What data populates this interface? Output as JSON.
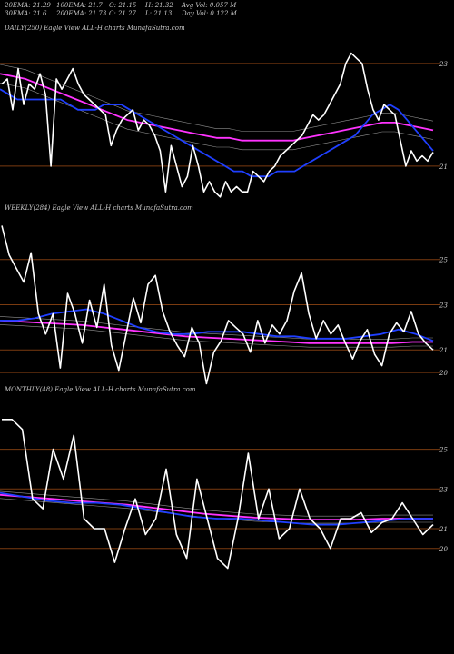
{
  "header": {
    "ema20": "20EMA: 21.29",
    "ema100": "100EMA: 21.7",
    "open": "O: 21.15",
    "high": "H: 21.32",
    "avg_vol": "Avg Vol: 0.057  M",
    "ema30": "30EMA: 21.6",
    "ema200": "200EMA: 21.73",
    "close": "C: 21.27",
    "low": "L: 21.13",
    "day_vol": "Day Vol: 0.122  M"
  },
  "colors": {
    "background": "#000000",
    "price": "#ffffff",
    "ema_fast": "#1f3fff",
    "ema_slow": "#ff33ff",
    "ema_mid": "#cfcfcf",
    "ema_brown": "#b06a2a",
    "ref_line": "#7a3b10"
  },
  "chart_data": [
    {
      "type": "line",
      "title": "DAILY(250) Eagle   View  ALL-H charts MunafaSutra.com",
      "tick_labels": [
        "23",
        "21"
      ],
      "ref_levels": [
        23,
        21
      ],
      "ylim": [
        19.6,
        23.6
      ],
      "series": [
        {
          "name": "Price",
          "color": "#ffffff",
          "values": [
            22.6,
            22.7,
            22.1,
            22.9,
            22.2,
            22.6,
            22.5,
            22.8,
            22.4,
            21.0,
            22.7,
            22.5,
            22.7,
            22.9,
            22.6,
            22.4,
            22.3,
            22.2,
            22.1,
            22.0,
            21.4,
            21.7,
            21.9,
            22.0,
            22.1,
            21.7,
            21.9,
            21.8,
            21.6,
            21.3,
            20.5,
            21.4,
            21.0,
            20.6,
            20.8,
            21.4,
            21.0,
            20.5,
            20.7,
            20.5,
            20.4,
            20.7,
            20.5,
            20.6,
            20.5,
            20.5,
            20.9,
            20.8,
            20.7,
            20.9,
            21.0,
            21.2,
            21.3,
            21.4,
            21.5,
            21.6,
            21.8,
            22.0,
            21.9,
            22.0,
            22.2,
            22.4,
            22.6,
            23.0,
            23.2,
            23.1,
            23.0,
            22.5,
            22.1,
            21.9,
            22.2,
            22.1,
            22.0,
            21.5,
            21.0,
            21.3,
            21.1,
            21.2,
            21.1,
            21.27
          ]
        },
        {
          "name": "EMA fast",
          "color": "#1f3fff",
          "values": [
            22.5,
            22.4,
            22.3,
            22.3,
            22.3,
            22.3,
            22.3,
            22.3,
            22.2,
            22.1,
            22.1,
            22.1,
            22.2,
            22.2,
            22.2,
            22.1,
            22.0,
            21.9,
            21.8,
            21.7,
            21.6,
            21.5,
            21.4,
            21.3,
            21.2,
            21.1,
            21.0,
            20.9,
            20.9,
            20.8,
            20.8,
            20.8,
            20.9,
            20.9,
            20.9,
            21.0,
            21.1,
            21.2,
            21.3,
            21.4,
            21.5,
            21.6,
            21.8,
            22.0,
            22.1,
            22.2,
            22.1,
            21.9,
            21.7,
            21.5,
            21.3
          ]
        },
        {
          "name": "EMA slow",
          "color": "#ff33ff",
          "values": [
            22.8,
            22.75,
            22.7,
            22.6,
            22.5,
            22.4,
            22.3,
            22.2,
            22.1,
            22.0,
            21.9,
            21.85,
            21.8,
            21.75,
            21.7,
            21.65,
            21.6,
            21.55,
            21.55,
            21.5,
            21.5,
            21.5,
            21.5,
            21.5,
            21.55,
            21.6,
            21.65,
            21.7,
            21.75,
            21.8,
            21.85,
            21.85,
            21.8,
            21.75,
            21.7
          ]
        }
      ]
    },
    {
      "type": "line",
      "title": "WEEKLY(284) Eagle   View  ALL-H charts MunafaSutra.com",
      "tick_labels": [
        "25",
        "23",
        "21",
        "20"
      ],
      "ref_levels": [
        25,
        23,
        21,
        20
      ],
      "ylim": [
        19.2,
        27
      ],
      "series": [
        {
          "name": "Price",
          "color": "#ffffff",
          "values": [
            26.5,
            25.2,
            24.6,
            24.0,
            25.3,
            22.6,
            21.7,
            22.6,
            20.2,
            23.5,
            22.6,
            21.3,
            23.2,
            22.0,
            23.9,
            21.2,
            20.1,
            21.7,
            23.3,
            22.2,
            23.9,
            24.3,
            22.7,
            21.8,
            21.2,
            20.7,
            22.0,
            21.3,
            19.5,
            20.9,
            21.4,
            22.3,
            22.0,
            21.7,
            20.9,
            22.3,
            21.3,
            22.1,
            21.7,
            22.3,
            23.6,
            24.4,
            22.6,
            21.5,
            22.3,
            21.7,
            22.1,
            21.3,
            20.6,
            21.4,
            21.9,
            20.8,
            20.3,
            21.7,
            22.2,
            21.8,
            22.7,
            21.7,
            21.3,
            21.0
          ]
        },
        {
          "name": "EMA fast",
          "color": "#1f3fff",
          "values": [
            22.3,
            22.3,
            22.4,
            22.6,
            22.7,
            22.8,
            22.6,
            22.3,
            22.0,
            21.8,
            21.7,
            21.7,
            21.8,
            21.8,
            21.8,
            21.7,
            21.6,
            21.6,
            21.5,
            21.5,
            21.5,
            21.6,
            21.7,
            21.9,
            21.7,
            21.4
          ]
        },
        {
          "name": "EMA slow",
          "color": "#ff33ff",
          "values": [
            22.3,
            22.25,
            22.2,
            22.15,
            22.1,
            22.0,
            21.9,
            21.8,
            21.7,
            21.6,
            21.55,
            21.5,
            21.45,
            21.4,
            21.35,
            21.3,
            21.3,
            21.3,
            21.3,
            21.3,
            21.35,
            21.35
          ]
        }
      ]
    },
    {
      "type": "line",
      "title": "MONTHLY(48) Eagle   View  ALL-H charts MunafaSutra.com",
      "tick_labels": [
        "25",
        "23",
        "21",
        "20"
      ],
      "ref_levels": [
        25,
        23,
        21,
        20
      ],
      "ylim": [
        18.8,
        27.5
      ],
      "series": [
        {
          "name": "Price",
          "color": "#ffffff",
          "values": [
            26.5,
            26.5,
            26.0,
            22.5,
            22.0,
            25.0,
            23.5,
            25.7,
            21.5,
            21.0,
            21.0,
            19.3,
            21.0,
            22.5,
            20.7,
            21.5,
            24.0,
            20.7,
            19.5,
            23.5,
            21.5,
            19.5,
            19.0,
            21.5,
            24.8,
            21.5,
            23.0,
            20.5,
            21.0,
            23.0,
            21.5,
            21.0,
            20.0,
            21.5,
            21.5,
            21.8,
            20.8,
            21.3,
            21.5,
            22.3,
            21.5,
            20.7,
            21.2
          ]
        },
        {
          "name": "EMA fast",
          "color": "#1f3fff",
          "values": [
            22.8,
            22.6,
            22.4,
            22.3,
            22.3,
            22.2,
            22.0,
            21.8,
            21.6,
            21.5,
            21.5,
            21.4,
            21.3,
            21.2,
            21.2,
            21.3,
            21.4,
            21.5,
            21.5
          ]
        },
        {
          "name": "EMA slow",
          "color": "#ff33ff",
          "values": [
            22.7,
            22.6,
            22.5,
            22.4,
            22.3,
            22.2,
            22.05,
            21.9,
            21.75,
            21.65,
            21.55,
            21.5,
            21.45,
            21.45,
            21.45,
            21.5,
            21.5,
            21.5
          ]
        }
      ]
    }
  ]
}
